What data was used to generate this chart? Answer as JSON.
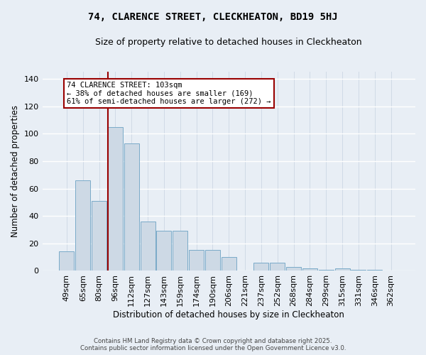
{
  "title": "74, CLARENCE STREET, CLECKHEATON, BD19 5HJ",
  "subtitle": "Size of property relative to detached houses in Cleckheaton",
  "xlabel": "Distribution of detached houses by size in Cleckheaton",
  "ylabel": "Number of detached properties",
  "categories": [
    "49sqm",
    "65sqm",
    "80sqm",
    "96sqm",
    "112sqm",
    "127sqm",
    "143sqm",
    "159sqm",
    "174sqm",
    "190sqm",
    "206sqm",
    "221sqm",
    "237sqm",
    "252sqm",
    "268sqm",
    "284sqm",
    "299sqm",
    "315sqm",
    "331sqm",
    "346sqm",
    "362sqm"
  ],
  "values": [
    14,
    66,
    51,
    105,
    93,
    36,
    29,
    29,
    15,
    15,
    10,
    0,
    6,
    6,
    3,
    2,
    1,
    2,
    1,
    1,
    0
  ],
  "bar_color": "#cdd9e5",
  "bar_edge_color": "#7aaac8",
  "vline_x_index": 3.0,
  "vline_color": "#990000",
  "annotation_text": "74 CLARENCE STREET: 103sqm\n← 38% of detached houses are smaller (169)\n61% of semi-detached houses are larger (272) →",
  "annotation_box_color": "#ffffff",
  "annotation_box_edge": "#990000",
  "ylim": [
    0,
    145
  ],
  "yticks": [
    0,
    20,
    40,
    60,
    80,
    100,
    120,
    140
  ],
  "bg_color": "#e8eef5",
  "grid_color": "#d0dae6",
  "footer_line1": "Contains HM Land Registry data © Crown copyright and database right 2025.",
  "footer_line2": "Contains public sector information licensed under the Open Government Licence v3.0."
}
